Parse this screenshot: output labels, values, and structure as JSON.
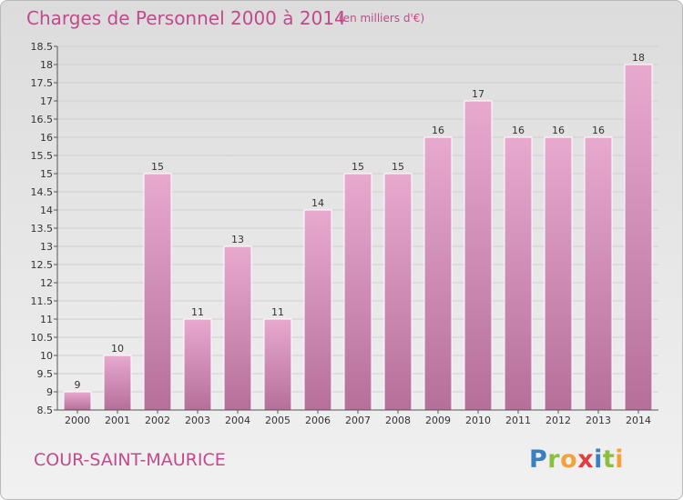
{
  "header": {
    "title": "Charges de Personnel 2000 à 2014",
    "unit": "(en milliers d'€)"
  },
  "footer": {
    "commune": "COUR-SAINT-MAURICE",
    "logo": "Proxiti"
  },
  "colors": {
    "bar_top": "#e8a9cf",
    "bar_bottom": "#b5709a",
    "accent": "#c2498b"
  },
  "chart_data": {
    "type": "bar",
    "title": "Charges de Personnel 2000 à 2014",
    "subtitle": "(en milliers d'€)",
    "categories": [
      "2000",
      "2001",
      "2002",
      "2003",
      "2004",
      "2005",
      "2006",
      "2007",
      "2008",
      "2009",
      "2010",
      "2011",
      "2012",
      "2013",
      "2014"
    ],
    "values": [
      9,
      10,
      15,
      11,
      13,
      11,
      14,
      15,
      15,
      16,
      17,
      16,
      16,
      16,
      18
    ],
    "ylim": [
      8.5,
      18.5
    ],
    "yticks": [
      8.5,
      9,
      9.5,
      10,
      10.5,
      11,
      11.5,
      12,
      12.5,
      13,
      13.5,
      14,
      14.5,
      15,
      15.5,
      16,
      16.5,
      17,
      17.5,
      18,
      18.5
    ],
    "ytick_labels": [
      "8.5",
      "9",
      "9.5",
      "10",
      "10.5",
      "11",
      "11.5",
      "12",
      "12.5",
      "13",
      "13.5",
      "14",
      "14.5",
      "15",
      "15.5",
      "16",
      "16.5",
      "17",
      "17.5",
      "18",
      "18.5"
    ],
    "grid": true,
    "legend": "none"
  }
}
